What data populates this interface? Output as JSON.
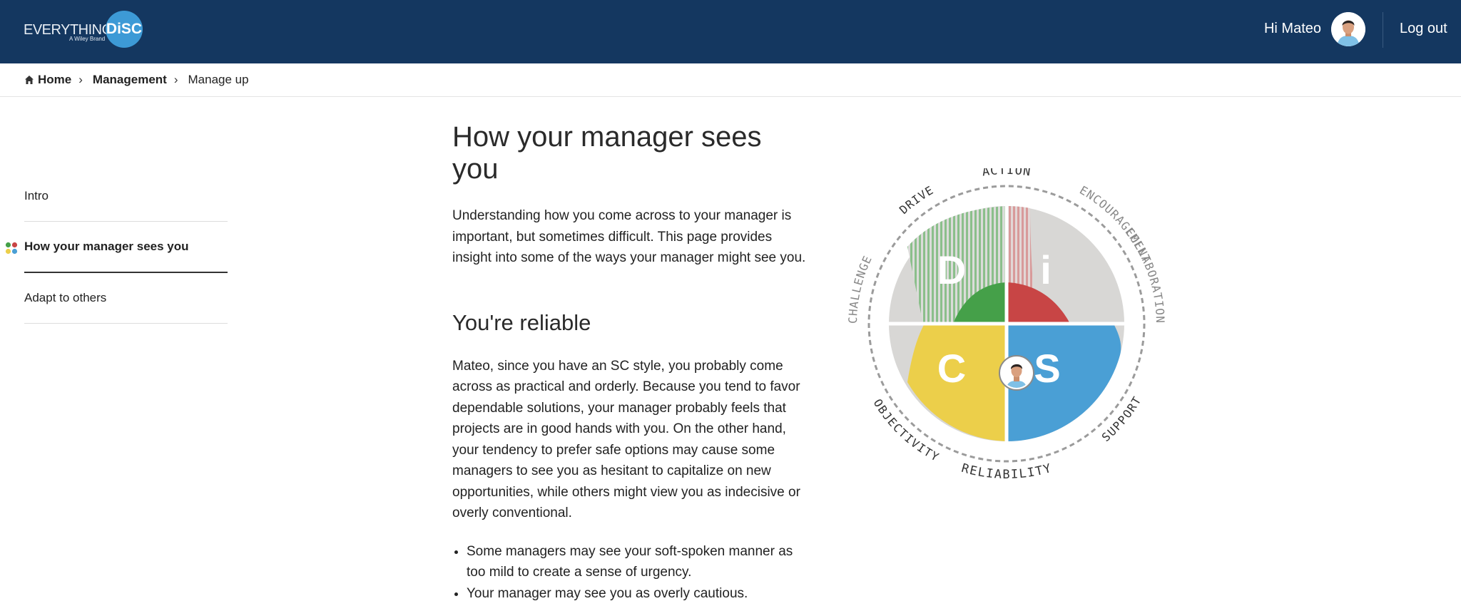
{
  "header": {
    "logo_text": "EVERYTHING",
    "logo_badge": "DiSC",
    "logo_sub": "A Wiley Brand",
    "greeting": "Hi Mateo",
    "logout_label": "Log out"
  },
  "breadcrumb": {
    "home": "Home",
    "section": "Management",
    "current": "Manage up"
  },
  "sidebar": {
    "items": [
      {
        "label": "Intro"
      },
      {
        "label": "How your manager sees you"
      },
      {
        "label": "Adapt to others"
      }
    ]
  },
  "main": {
    "title": "How your manager sees you",
    "intro": "Understanding how you come across to your manager is important, but sometimes difficult. This page provides insight into some of the ways your manager might see you.",
    "subtitle": "You're reliable",
    "body": "Mateo, since you have an SC style, you probably come across as practical and orderly. Because you tend to favor dependable solutions, your manager probably feels that projects are in good hands with you. On the other hand, your tendency to prefer safe options may cause some managers to see you as hesitant to capitalize on new opportunities, while others might view you as indecisive or overly conventional.",
    "bullets": [
      "Some managers may see your soft-spoken manner as too mild to create a sense of urgency.",
      "Your manager may see you as overly cautious."
    ]
  },
  "disc_wheel": {
    "quadrants": [
      "D",
      "i",
      "S",
      "C"
    ],
    "labels": [
      "ACTION",
      "ENCOURAGEMENT",
      "COLLABORATION",
      "SUPPORT",
      "RELIABILITY",
      "OBJECTIVITY",
      "CHALLENGE",
      "DRIVE"
    ],
    "colors": {
      "D": "#45a049",
      "i": "#c84545",
      "S": "#4a9fd5",
      "C": "#eccf4a",
      "neutral": "#d8d7d5"
    }
  }
}
